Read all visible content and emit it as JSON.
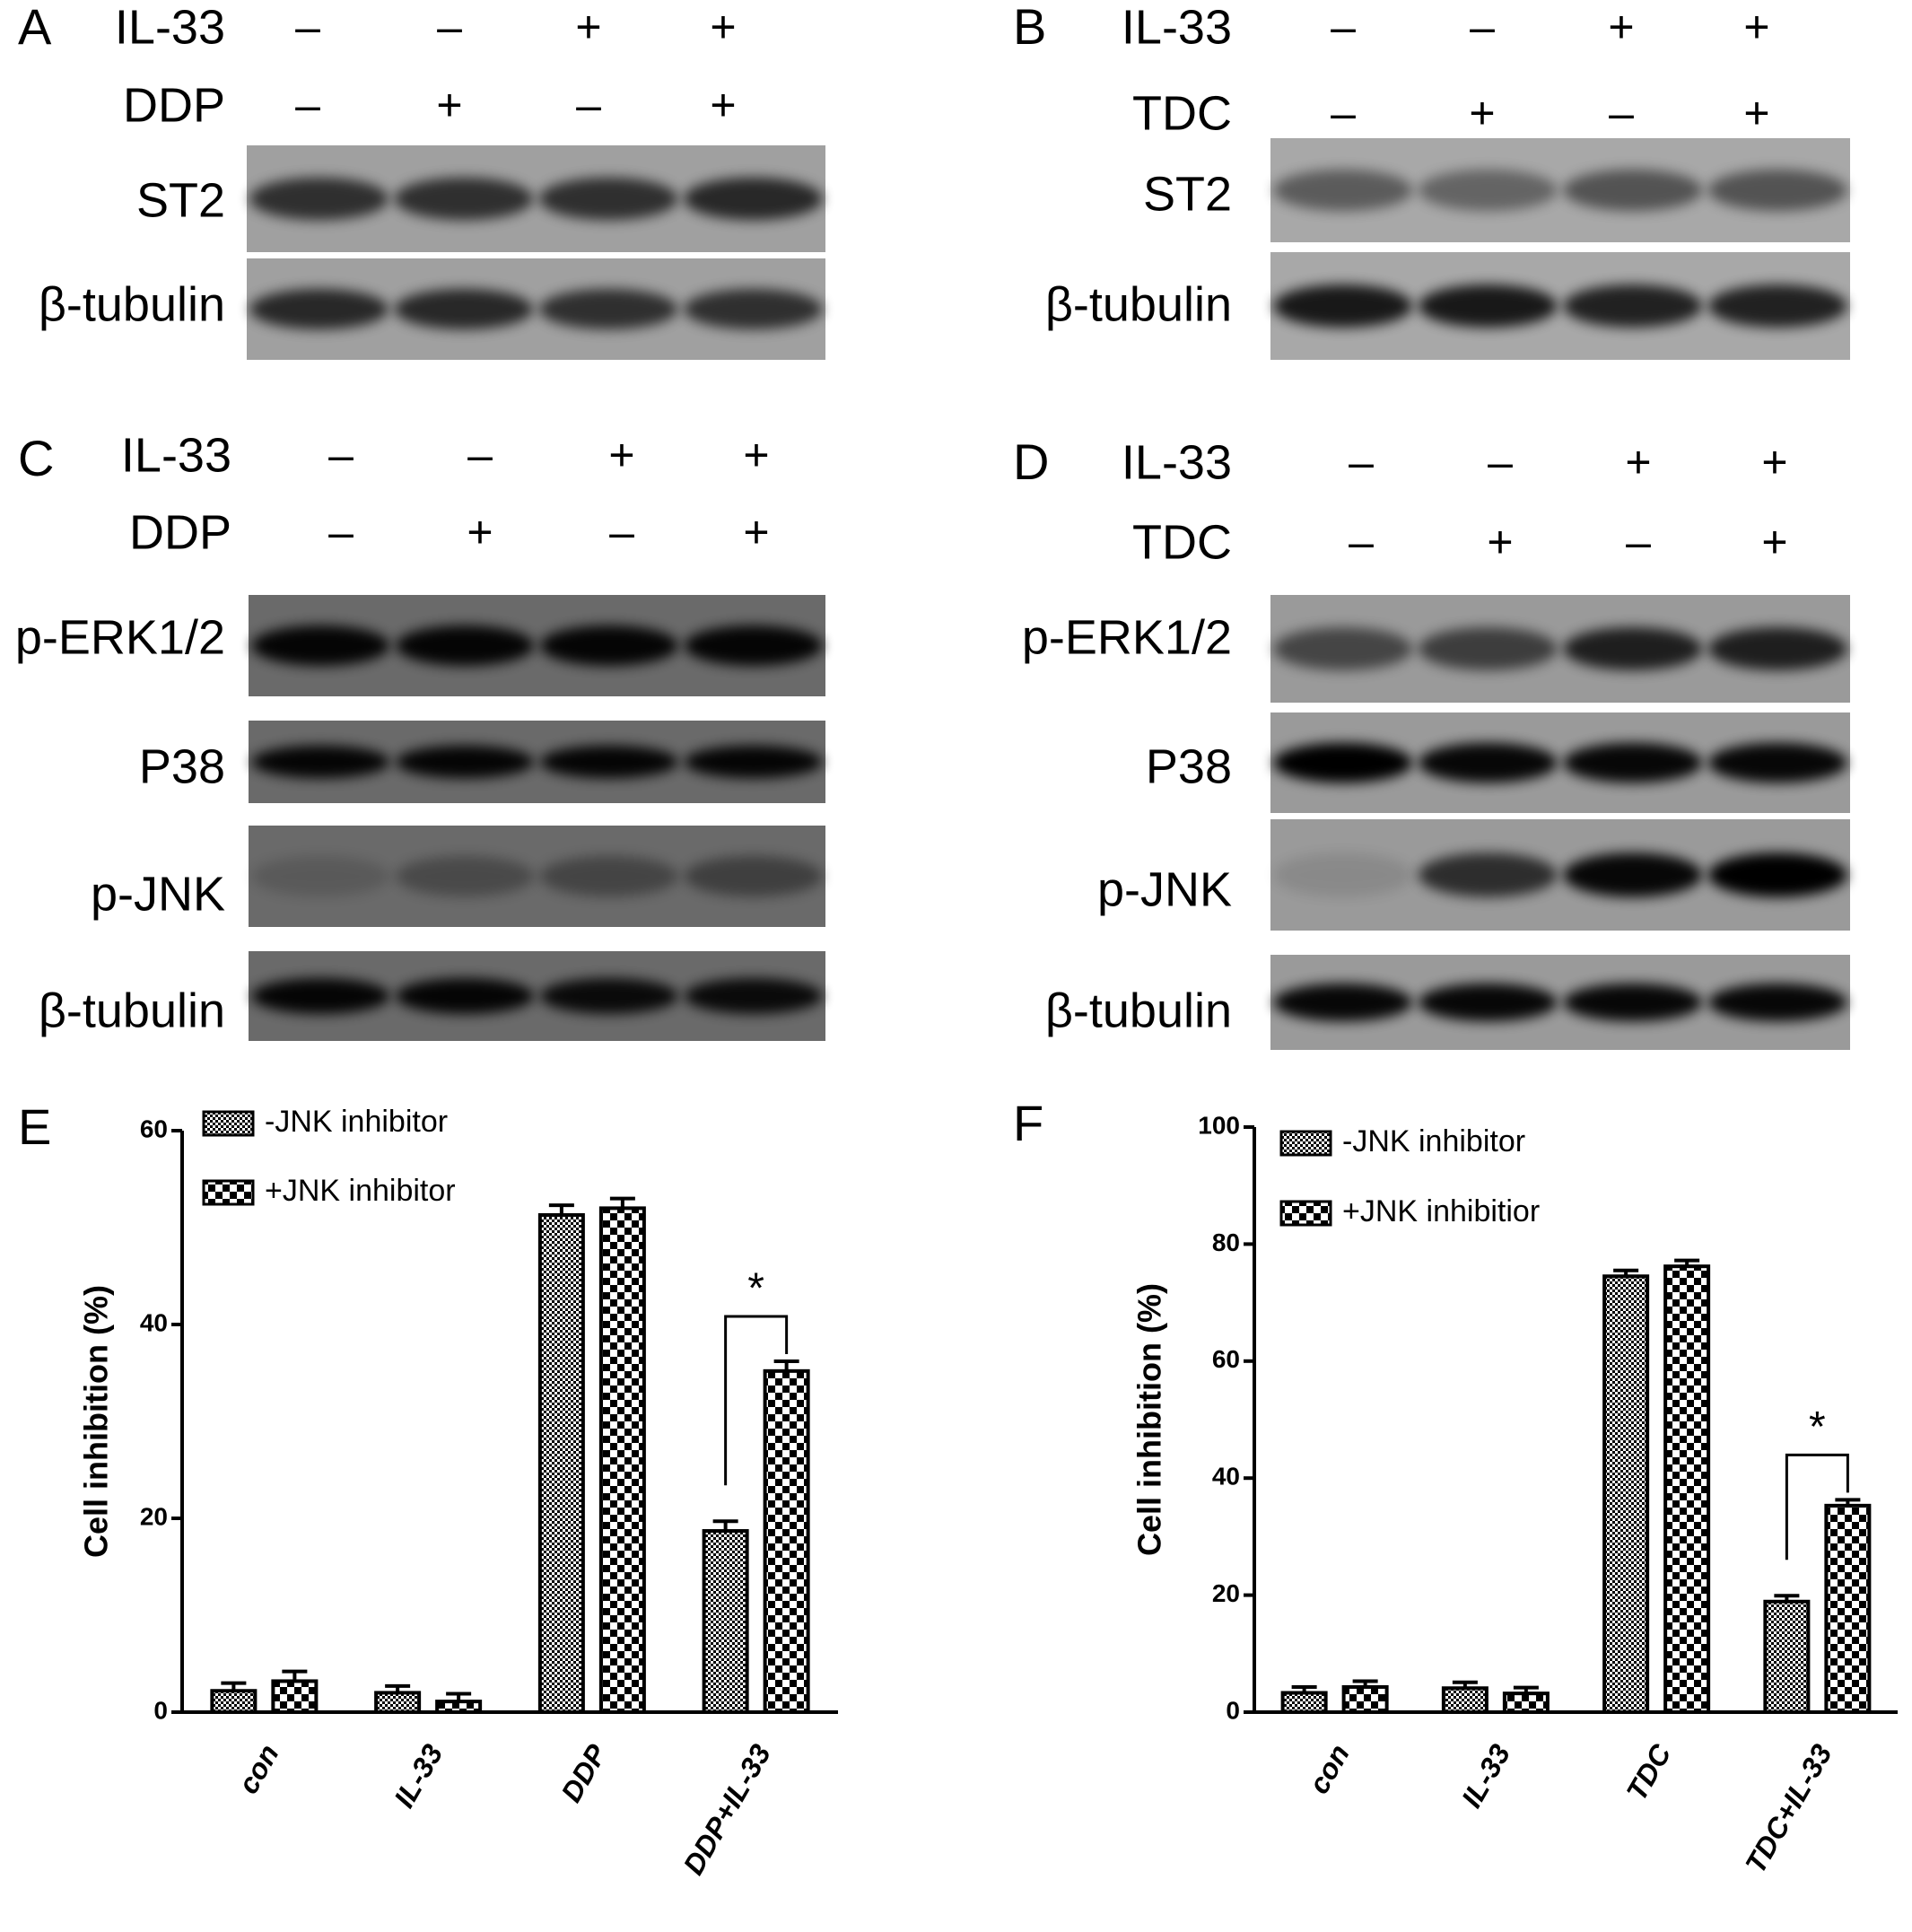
{
  "panels": [
    {
      "label": "A",
      "treatments": [
        {
          "name": "IL-33",
          "signs": [
            "–",
            "–",
            "+",
            "+"
          ]
        },
        {
          "name": "DDP",
          "signs": [
            "–",
            "+",
            "–",
            "+"
          ]
        }
      ],
      "blots": [
        "ST2",
        "β-tubulin"
      ]
    },
    {
      "label": "B",
      "treatments": [
        {
          "name": "IL-33",
          "signs": [
            "–",
            "–",
            "+",
            "+"
          ]
        },
        {
          "name": "TDC",
          "signs": [
            "–",
            "+",
            "–",
            "+"
          ]
        }
      ],
      "blots": [
        "ST2",
        "β-tubulin"
      ]
    },
    {
      "label": "C",
      "treatments": [
        {
          "name": "IL-33",
          "signs": [
            "–",
            "–",
            "+",
            "+"
          ]
        },
        {
          "name": "DDP",
          "signs": [
            "–",
            "+",
            "–",
            "+"
          ]
        }
      ],
      "blots": [
        "p-ERK1/2",
        "P38",
        "p-JNK",
        "β-tubulin"
      ]
    },
    {
      "label": "D",
      "treatments": [
        {
          "name": "IL-33",
          "signs": [
            "–",
            "–",
            "+",
            "+"
          ]
        },
        {
          "name": "TDC",
          "signs": [
            "–",
            "+",
            "–",
            "+"
          ]
        }
      ],
      "blots": [
        "p-ERK1/2",
        "P38",
        "p-JNK",
        "β-tubulin"
      ]
    }
  ],
  "chart_data": [
    {
      "type": "bar",
      "panel_label": "E",
      "y_label": "Cell inhibition (%)",
      "categories": [
        "con",
        "IL-33",
        "DDP",
        "DDP+IL-33"
      ],
      "series": [
        {
          "name": "-JNK inhibitor",
          "color": "#000000",
          "values": [
            2.2,
            2,
            51.3,
            18.7
          ],
          "errors": [
            0.8,
            0.7,
            1,
            1
          ]
        },
        {
          "name": "+JNK inhibitor",
          "color": "#000000",
          "values": [
            3.2,
            1.1,
            52,
            35.2
          ],
          "errors": [
            1,
            0.8,
            1,
            1
          ]
        }
      ],
      "ylim": [
        0,
        60
      ],
      "yticks": [
        0,
        20,
        40,
        60
      ],
      "annotation": "*"
    },
    {
      "type": "bar",
      "panel_label": "F",
      "y_label": "Cell inhibition (%)",
      "categories": [
        "con",
        "IL-33",
        "TDC",
        "TDC+IL-33"
      ],
      "series": [
        {
          "name": "-JNK inhibitor",
          "color": "#000000",
          "values": [
            3.3,
            4.1,
            74.5,
            18.9
          ],
          "errors": [
            1,
            1,
            1,
            1
          ]
        },
        {
          "name": "+JNK inhibitior",
          "color": "#000000",
          "values": [
            4.3,
            3.2,
            76.2,
            35.3
          ],
          "errors": [
            1,
            1,
            1,
            1
          ]
        }
      ],
      "ylim": [
        0,
        100
      ],
      "yticks": [
        0,
        20,
        40,
        60,
        80,
        100
      ],
      "annotation": "*"
    }
  ]
}
